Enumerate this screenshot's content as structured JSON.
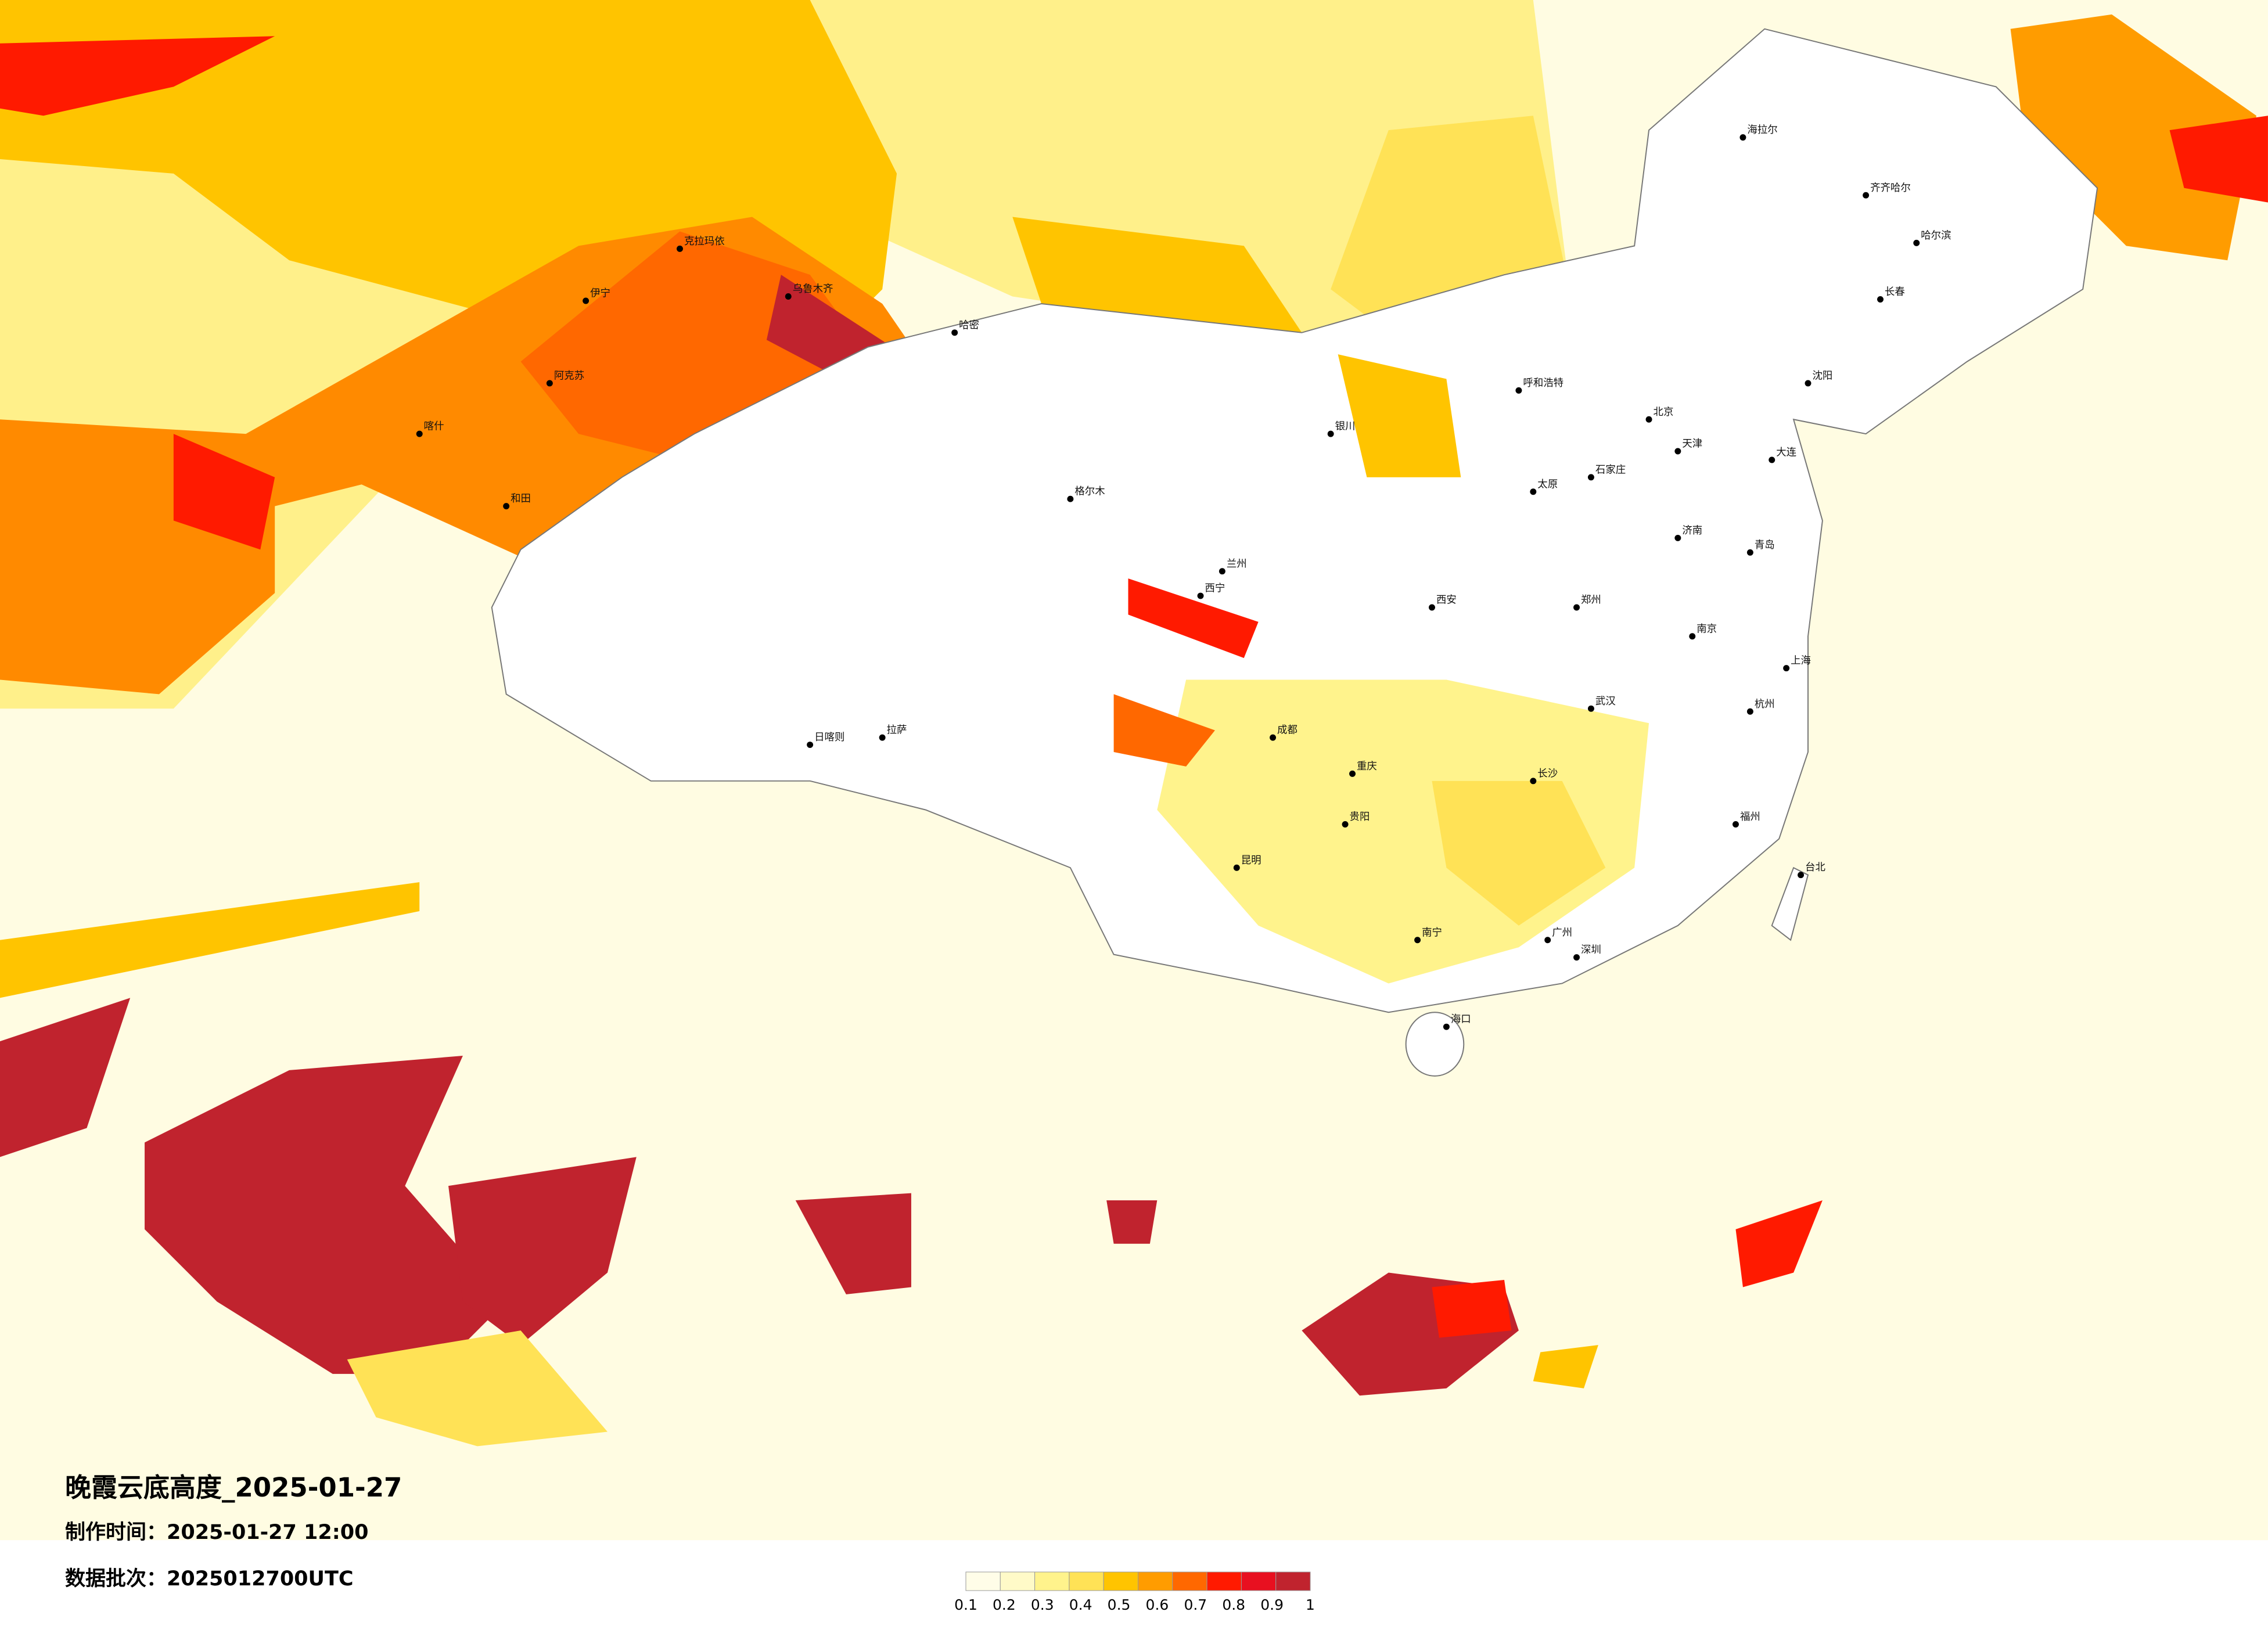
{
  "title": "晚霞云底高度_2025-01-27",
  "made_time": "制作时间：2025-01-27 12:00",
  "data_batch": "数据批次：2025012700UTC",
  "legend": {
    "ticks": [
      0.1,
      0.2,
      0.3,
      0.4,
      0.5,
      0.6,
      0.7,
      0.8,
      0.9,
      1
    ],
    "colors": [
      "#fffde8",
      "#fffac8",
      "#fff38c",
      "#ffe256",
      "#ffc400",
      "#ff9c00",
      "#ff6800",
      "#ff1a00",
      "#e81020",
      "#c0232e"
    ]
  },
  "cities": [
    "齐齐哈尔",
    "哈尔滨",
    "长春",
    "沈阳",
    "海拉尔",
    "呼和浩特",
    "北京",
    "天津",
    "石家庄",
    "太原",
    "乌鲁木齐",
    "克拉玛依",
    "伊宁",
    "阿克苏",
    "和田",
    "喀什",
    "哈密",
    "格尔木",
    "日喀则",
    "拉萨",
    "西宁",
    "兰州",
    "银川",
    "成都",
    "重庆",
    "贵阳",
    "昆明",
    "南宁",
    "广州",
    "深圳",
    "海口",
    "长沙",
    "武汉",
    "南京",
    "上海",
    "杭州",
    "福州",
    "台北",
    "郑州",
    "西安",
    "济南",
    "青岛",
    "大连"
  ]
}
